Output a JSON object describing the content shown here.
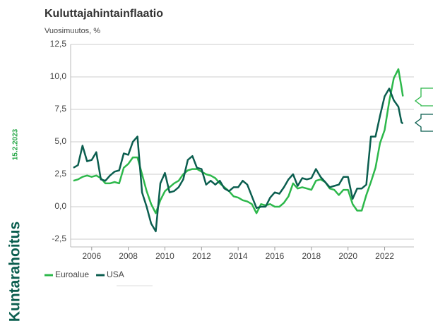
{
  "chart_data": {
    "type": "line",
    "title": "Kuluttajahintainflaatio",
    "subtitle": "Vuosimuutos, %",
    "date": "15.2.2023",
    "brand": "Kuntarahoitus",
    "x": [
      2005,
      2005.25,
      2005.5,
      2005.75,
      2006,
      2006.25,
      2006.5,
      2006.75,
      2007,
      2007.25,
      2007.5,
      2007.75,
      2008,
      2008.25,
      2008.5,
      2008.75,
      2009,
      2009.25,
      2009.5,
      2009.75,
      2010,
      2010.25,
      2010.5,
      2010.75,
      2011,
      2011.25,
      2011.5,
      2011.75,
      2012,
      2012.25,
      2012.5,
      2012.75,
      2013,
      2013.25,
      2013.5,
      2013.75,
      2014,
      2014.25,
      2014.5,
      2014.75,
      2015,
      2015.25,
      2015.5,
      2015.75,
      2016,
      2016.25,
      2016.5,
      2016.75,
      2017,
      2017.25,
      2017.5,
      2017.75,
      2018,
      2018.25,
      2018.5,
      2018.75,
      2019,
      2019.25,
      2019.5,
      2019.75,
      2020,
      2020.25,
      2020.5,
      2020.75,
      2021,
      2021.25,
      2021.5,
      2021.75,
      2022,
      2022.25,
      2022.5,
      2022.75,
      2022.92,
      2023
    ],
    "series": [
      {
        "name": "Euroalue",
        "color": "#2db84b",
        "values": [
          2.0,
          2.1,
          2.3,
          2.4,
          2.3,
          2.4,
          2.2,
          1.8,
          1.8,
          1.9,
          1.8,
          3.0,
          3.3,
          3.8,
          3.8,
          2.5,
          1.2,
          0.2,
          -0.5,
          0.5,
          1.2,
          1.5,
          1.8,
          2.0,
          2.5,
          2.8,
          2.9,
          2.9,
          2.7,
          2.5,
          2.4,
          2.2,
          1.8,
          1.5,
          1.2,
          0.8,
          0.7,
          0.5,
          0.4,
          0.2,
          -0.5,
          0.2,
          0.1,
          0.2,
          0.0,
          0.0,
          0.3,
          0.8,
          1.8,
          1.4,
          1.5,
          1.4,
          1.3,
          2.0,
          2.1,
          1.9,
          1.4,
          1.3,
          0.9,
          1.3,
          1.3,
          0.2,
          -0.3,
          -0.3,
          0.9,
          1.9,
          3.0,
          4.9,
          5.9,
          8.1,
          9.9,
          10.6,
          9.2,
          8.5
        ]
      },
      {
        "name": "USA",
        "color": "#0b5e4f",
        "values": [
          3.0,
          3.2,
          4.7,
          3.5,
          3.6,
          4.2,
          2.1,
          2.0,
          2.4,
          2.7,
          2.8,
          4.1,
          4.0,
          5.0,
          5.4,
          1.1,
          0.0,
          -1.3,
          -1.9,
          1.8,
          2.6,
          1.1,
          1.2,
          1.5,
          2.1,
          3.6,
          3.9,
          3.0,
          2.9,
          1.7,
          2.0,
          1.7,
          2.0,
          1.4,
          1.2,
          1.5,
          1.5,
          2.0,
          1.7,
          0.8,
          -0.1,
          0.0,
          0.0,
          0.7,
          1.1,
          1.0,
          1.5,
          2.1,
          2.5,
          1.6,
          2.2,
          2.1,
          2.2,
          2.9,
          2.3,
          1.9,
          1.5,
          1.6,
          1.7,
          2.3,
          2.3,
          0.6,
          1.4,
          1.4,
          1.7,
          5.4,
          5.4,
          7.0,
          8.5,
          9.1,
          8.2,
          7.7,
          6.5,
          6.4
        ]
      }
    ],
    "xlim": [
      2004.85,
      2023.6
    ],
    "xticks": [
      2006,
      2008,
      2010,
      2012,
      2014,
      2016,
      2018,
      2020,
      2022
    ],
    "ylim": [
      -3.1,
      12.5
    ],
    "yticks": [
      {
        "value": 12.5,
        "label": "12,5"
      },
      {
        "value": 10,
        "label": "10,0"
      },
      {
        "value": 7.5,
        "label": "7,5"
      },
      {
        "value": 5,
        "label": "5,0"
      },
      {
        "value": 2.5,
        "label": "2,5"
      },
      {
        "value": 0,
        "label": "0,0"
      },
      {
        "value": -2.5,
        "label": "-2,5"
      }
    ],
    "grid": true,
    "legend": "bottom-left"
  }
}
